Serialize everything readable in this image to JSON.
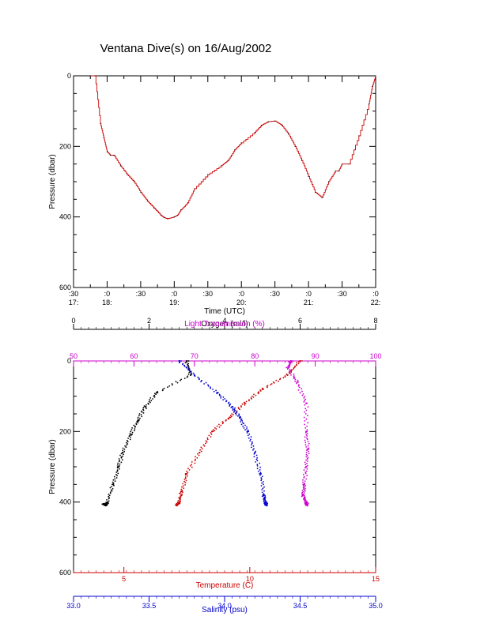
{
  "title": "Ventana Dive(s) on 16/Aug/2002",
  "chart_data": [
    {
      "type": "line",
      "ylabel": "Pressure (dbar)",
      "xlabel": "Time (UTC)",
      "ylim": [
        600,
        0
      ],
      "y_ticks": [
        "0",
        "200",
        "400",
        "600"
      ],
      "x_tick_labels": [
        {
          "t": 16.5,
          "top": ":30",
          "bottom": "17:"
        },
        {
          "t": 17.0,
          "top": ":0",
          "bottom": "18:"
        },
        {
          "t": 17.5,
          "top": ":30",
          "bottom": ""
        },
        {
          "t": 18.0,
          "top": ":0",
          "bottom": "19:"
        },
        {
          "t": 18.5,
          "top": ":30",
          "bottom": ""
        },
        {
          "t": 19.0,
          "top": ":0",
          "bottom": "20:"
        },
        {
          "t": 19.5,
          "top": ":30",
          "bottom": ""
        },
        {
          "t": 20.0,
          "top": ":0",
          "bottom": "21:"
        },
        {
          "t": 20.5,
          "top": ":30",
          "bottom": ""
        },
        {
          "t": 21.0,
          "top": ":0",
          "bottom": "22:"
        }
      ],
      "xlim": [
        16.5,
        21.0
      ],
      "series_color": "#cc0000",
      "x": [
        16.75,
        16.82,
        16.9,
        16.95,
        17.0,
        17.05,
        17.1,
        17.2,
        17.3,
        17.4,
        17.5,
        17.6,
        17.7,
        17.8,
        17.85,
        17.9,
        18.0,
        18.05,
        18.1,
        18.2,
        18.3,
        18.5,
        18.7,
        18.8,
        18.9,
        19.0,
        19.2,
        19.3,
        19.4,
        19.5,
        19.6,
        19.7,
        19.8,
        19.9,
        20.0,
        20.1,
        20.2,
        20.3,
        20.4,
        20.45,
        20.5,
        20.6,
        20.75,
        20.9,
        20.95,
        21.0
      ],
      "y": [
        0,
        0,
        135,
        175,
        215,
        225,
        225,
        255,
        280,
        300,
        330,
        355,
        375,
        395,
        402,
        405,
        400,
        395,
        380,
        360,
        320,
        280,
        255,
        240,
        210,
        190,
        160,
        140,
        130,
        128,
        140,
        165,
        200,
        240,
        285,
        330,
        345,
        300,
        270,
        270,
        250,
        250,
        170,
        80,
        30,
        0
      ]
    },
    {
      "type": "scatter",
      "ylabel": "Pressure (dbar)",
      "ylim": [
        600,
        0
      ],
      "y_ticks": [
        "0",
        "200",
        "400",
        "600"
      ],
      "axes": [
        {
          "name": "Oxygen (ml/l)",
          "position": "top",
          "range": [
            0,
            8
          ],
          "ticks": [
            "0",
            "2",
            "4",
            "6",
            "8"
          ],
          "color": "#000000"
        },
        {
          "name": "Light Transmission (%)",
          "position": "top2",
          "range": [
            50,
            100
          ],
          "ticks": [
            "50",
            "60",
            "70",
            "80",
            "90",
            "100"
          ],
          "color": "#cc00cc"
        },
        {
          "name": "Temperature (C)",
          "position": "bottom",
          "range": [
            3,
            15
          ],
          "ticks": [
            "5",
            "10",
            "15"
          ],
          "color": "#cc0000"
        },
        {
          "name": "Salinity (psu)",
          "position": "bottom2",
          "range": [
            33.0,
            35.0
          ],
          "ticks": [
            "33.0",
            "33.5",
            "34.0",
            "34.5",
            "35.0"
          ],
          "color": "#0000cc"
        }
      ],
      "series": [
        {
          "axis": "Oxygen (ml/l)",
          "color": "#000000",
          "values": [
            [
              3.0,
              0
            ],
            [
              3.1,
              40
            ],
            [
              2.2,
              90
            ],
            [
              1.9,
              130
            ],
            [
              1.7,
              170
            ],
            [
              1.5,
              210
            ],
            [
              1.3,
              260
            ],
            [
              1.2,
              300
            ],
            [
              1.05,
              350
            ],
            [
              0.9,
              400
            ],
            [
              0.85,
              410
            ],
            [
              0.8,
              405
            ]
          ]
        },
        {
          "axis": "Light Transmission (%)",
          "color": "#cc00cc",
          "values": [
            [
              86,
              0
            ],
            [
              85.5,
              20
            ],
            [
              87,
              60
            ],
            [
              88.5,
              120
            ],
            [
              88.5,
              200
            ],
            [
              88.7,
              250
            ],
            [
              88.5,
              300
            ],
            [
              88.2,
              350
            ],
            [
              88.0,
              380
            ],
            [
              88.5,
              400
            ],
            [
              88.7,
              410
            ]
          ]
        },
        {
          "axis": "Temperature (C)",
          "color": "#cc0000",
          "values": [
            [
              12.0,
              0
            ],
            [
              11.5,
              40
            ],
            [
              10.5,
              80
            ],
            [
              9.8,
              120
            ],
            [
              9.2,
              160
            ],
            [
              8.5,
              200
            ],
            [
              8.0,
              260
            ],
            [
              7.5,
              320
            ],
            [
              7.3,
              370
            ],
            [
              7.2,
              400
            ],
            [
              7.1,
              410
            ]
          ]
        },
        {
          "axis": "Salinity (psu)",
          "color": "#0000cc",
          "values": [
            [
              33.7,
              0
            ],
            [
              33.8,
              40
            ],
            [
              33.95,
              90
            ],
            [
              34.05,
              130
            ],
            [
              34.1,
              160
            ],
            [
              34.15,
              200
            ],
            [
              34.2,
              260
            ],
            [
              34.24,
              320
            ],
            [
              34.26,
              380
            ],
            [
              34.27,
              400
            ],
            [
              34.28,
              410
            ]
          ]
        }
      ]
    }
  ]
}
